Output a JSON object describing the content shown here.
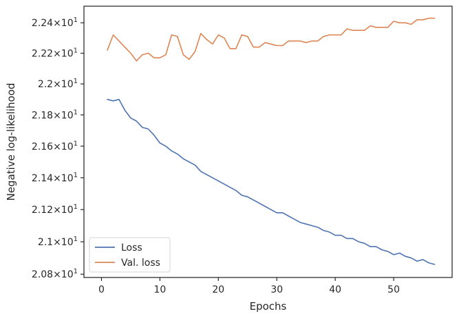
{
  "chart_data": {
    "type": "line",
    "title": "",
    "xlabel": "Epochs",
    "ylabel": "Negative log-likelihood",
    "yscale": "log",
    "xlim": [
      -3,
      60
    ],
    "ylim": [
      20.78,
      22.51
    ],
    "xticks": [
      0,
      10,
      20,
      30,
      40,
      50
    ],
    "xtick_labels": [
      "0",
      "10",
      "20",
      "30",
      "40",
      "50"
    ],
    "yticks": [
      {
        "value": 20.8,
        "mantissa": "2.08",
        "base": "10",
        "exp": "1"
      },
      {
        "value": 21.0,
        "mantissa": "2.1",
        "base": "10",
        "exp": "1"
      },
      {
        "value": 21.2,
        "mantissa": "2.12",
        "base": "10",
        "exp": "1"
      },
      {
        "value": 21.4,
        "mantissa": "2.14",
        "base": "10",
        "exp": "1"
      },
      {
        "value": 21.6,
        "mantissa": "2.16",
        "base": "10",
        "exp": "1"
      },
      {
        "value": 21.8,
        "mantissa": "2.18",
        "base": "10",
        "exp": "1"
      },
      {
        "value": 22.0,
        "mantissa": "2.2",
        "base": "10",
        "exp": "1"
      },
      {
        "value": 22.2,
        "mantissa": "2.22",
        "base": "10",
        "exp": "1"
      },
      {
        "value": 22.4,
        "mantissa": "2.24",
        "base": "10",
        "exp": "1"
      }
    ],
    "ytick_times": "×",
    "grid": false,
    "legend_position": "lower-left",
    "x": [
      1,
      2,
      3,
      4,
      5,
      6,
      7,
      8,
      9,
      10,
      11,
      12,
      13,
      14,
      15,
      16,
      17,
      18,
      19,
      20,
      21,
      22,
      23,
      24,
      25,
      26,
      27,
      28,
      29,
      30,
      31,
      32,
      33,
      34,
      35,
      36,
      37,
      38,
      39,
      40,
      41,
      42,
      43,
      44,
      45,
      46,
      47,
      48,
      49,
      50,
      51,
      52,
      53,
      54,
      55,
      56,
      57
    ],
    "series": [
      {
        "name": "Loss",
        "color": "#4c72b0",
        "values": [
          21.9,
          21.89,
          21.9,
          21.83,
          21.78,
          21.76,
          21.72,
          21.71,
          21.67,
          21.62,
          21.6,
          21.57,
          21.55,
          21.52,
          21.5,
          21.48,
          21.44,
          21.42,
          21.4,
          21.38,
          21.36,
          21.34,
          21.32,
          21.29,
          21.28,
          21.26,
          21.24,
          21.22,
          21.2,
          21.18,
          21.18,
          21.16,
          21.14,
          21.12,
          21.11,
          21.1,
          21.09,
          21.07,
          21.06,
          21.04,
          21.04,
          21.02,
          21.02,
          21.0,
          20.99,
          20.97,
          20.97,
          20.95,
          20.94,
          20.92,
          20.93,
          20.91,
          20.9,
          20.88,
          20.89,
          20.87,
          20.86
        ]
      },
      {
        "name": "Val. loss",
        "color": "#dd8452",
        "values": [
          22.22,
          22.32,
          22.28,
          22.24,
          22.2,
          22.15,
          22.19,
          22.2,
          22.17,
          22.17,
          22.19,
          22.32,
          22.31,
          22.19,
          22.16,
          22.21,
          22.33,
          22.29,
          22.26,
          22.32,
          22.3,
          22.23,
          22.23,
          22.32,
          22.31,
          22.24,
          22.24,
          22.27,
          22.26,
          22.25,
          22.25,
          22.28,
          22.28,
          22.28,
          22.27,
          22.28,
          22.28,
          22.31,
          22.32,
          22.32,
          22.32,
          22.36,
          22.35,
          22.35,
          22.35,
          22.38,
          22.37,
          22.37,
          22.37,
          22.41,
          22.4,
          22.4,
          22.39,
          22.42,
          22.42,
          22.43,
          22.43
        ]
      }
    ]
  }
}
